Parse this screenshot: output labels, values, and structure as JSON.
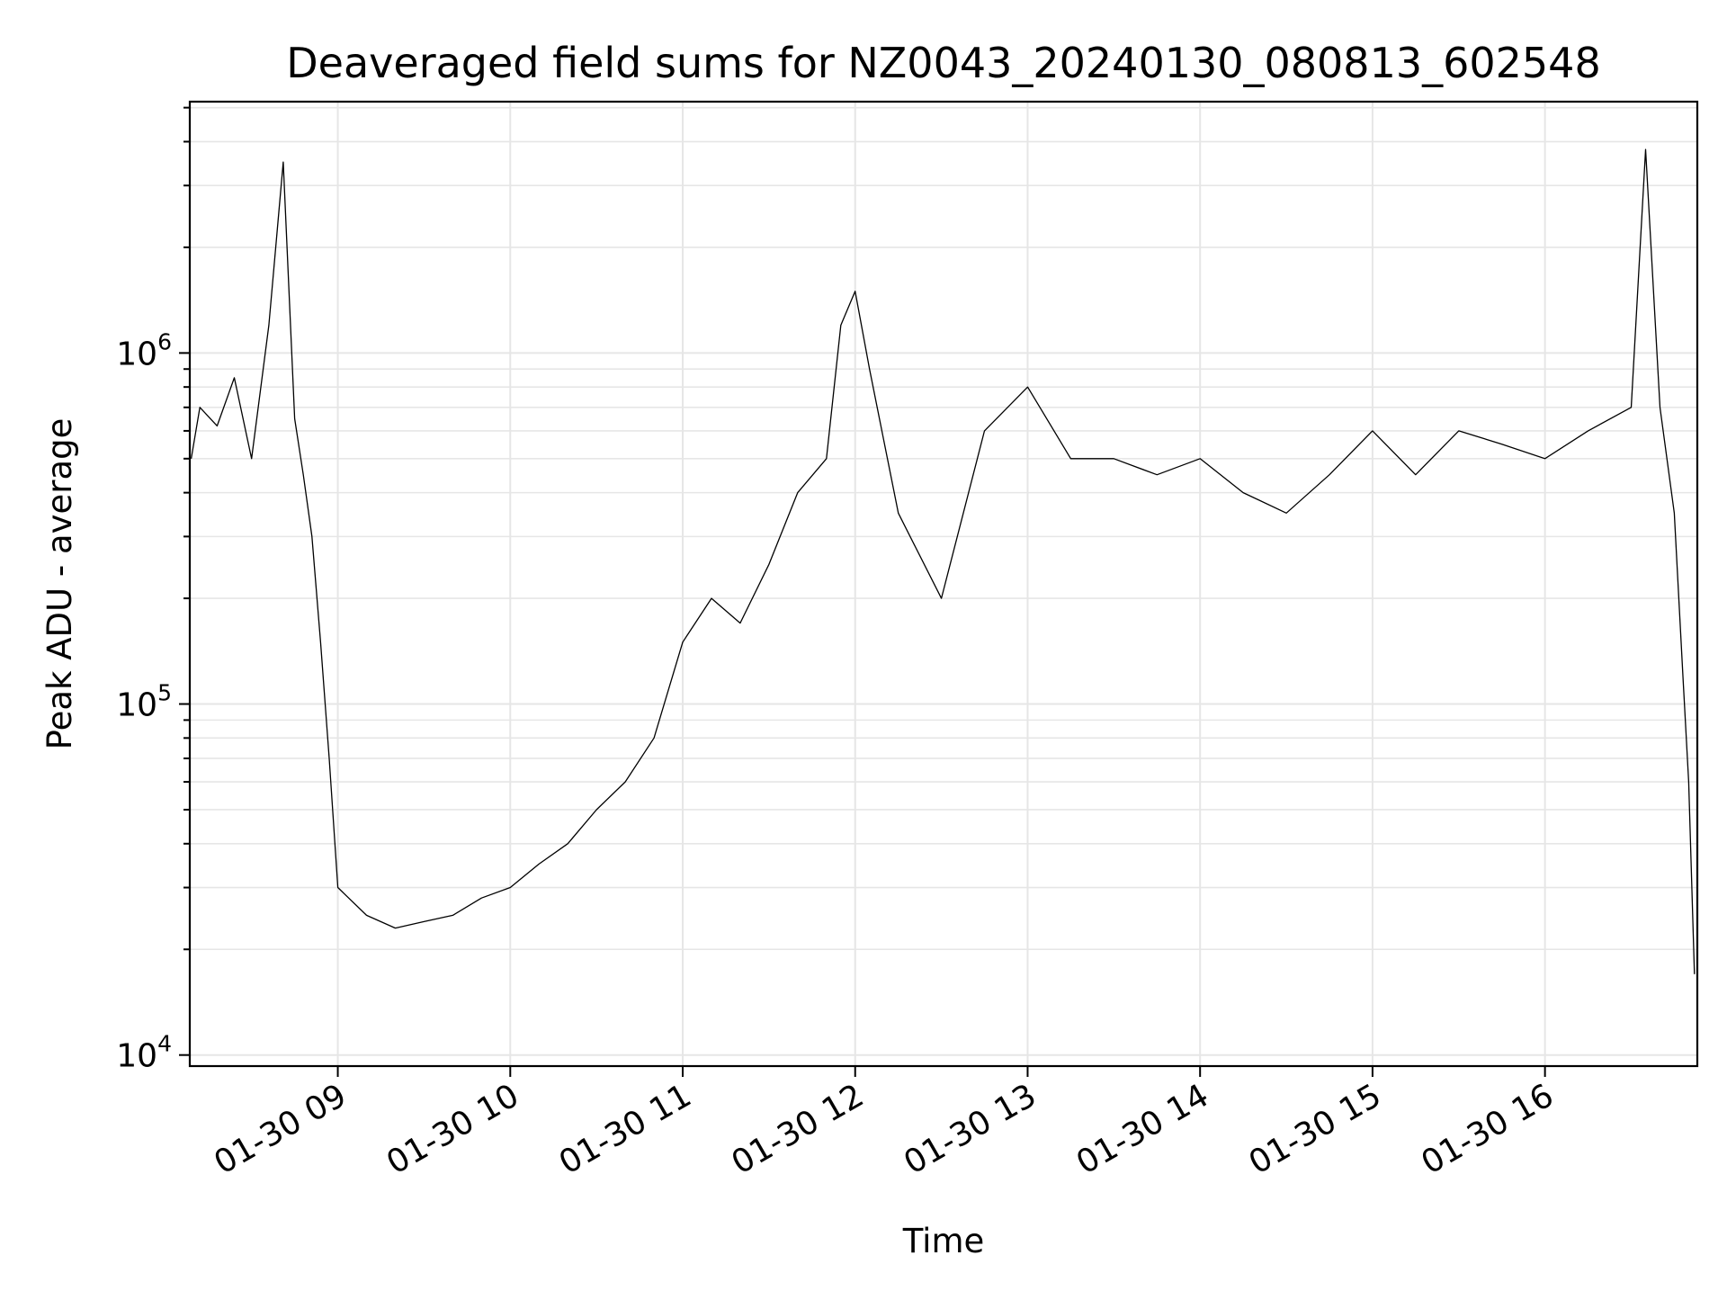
{
  "chart_data": {
    "type": "line",
    "title": "Deaveraged field sums for NZ0043_20240130_080813_602548",
    "xlabel": "Time",
    "ylabel": "Peak ADU - average",
    "yscale": "log",
    "ylim": [
      9300,
      5200000
    ],
    "xlim": [
      "2024-01-30 08:08:30",
      "2024-01-30 16:53:00"
    ],
    "grid": true,
    "legend": "none",
    "line_color": "#000000",
    "grid_color": "#e6e6e6",
    "x_ticks": [
      {
        "value": "2024-01-30 09:00",
        "label": "01-30 09"
      },
      {
        "value": "2024-01-30 10:00",
        "label": "01-30 10"
      },
      {
        "value": "2024-01-30 11:00",
        "label": "01-30 11"
      },
      {
        "value": "2024-01-30 12:00",
        "label": "01-30 12"
      },
      {
        "value": "2024-01-30 13:00",
        "label": "01-30 13"
      },
      {
        "value": "2024-01-30 14:00",
        "label": "01-30 14"
      },
      {
        "value": "2024-01-30 15:00",
        "label": "01-30 15"
      },
      {
        "value": "2024-01-30 16:00",
        "label": "01-30 16"
      }
    ],
    "y_ticks": [
      {
        "value": 10000,
        "base": "10",
        "exp": "4"
      },
      {
        "value": 100000,
        "base": "10",
        "exp": "5"
      },
      {
        "value": 1000000,
        "base": "10",
        "exp": "6"
      }
    ],
    "series": [
      {
        "points": [
          [
            "2024-01-30 08:09",
            500000
          ],
          [
            "2024-01-30 08:12",
            700000
          ],
          [
            "2024-01-30 08:18",
            620000
          ],
          [
            "2024-01-30 08:24",
            850000
          ],
          [
            "2024-01-30 08:30",
            500000
          ],
          [
            "2024-01-30 08:36",
            1200000
          ],
          [
            "2024-01-30 08:41",
            3500000
          ],
          [
            "2024-01-30 08:45",
            650000
          ],
          [
            "2024-01-30 08:48",
            450000
          ],
          [
            "2024-01-30 08:51",
            300000
          ],
          [
            "2024-01-30 08:54",
            150000
          ],
          [
            "2024-01-30 08:57",
            70000
          ],
          [
            "2024-01-30 09:00",
            30000
          ],
          [
            "2024-01-30 09:10",
            25000
          ],
          [
            "2024-01-30 09:20",
            23000
          ],
          [
            "2024-01-30 09:30",
            24000
          ],
          [
            "2024-01-30 09:40",
            25000
          ],
          [
            "2024-01-30 09:50",
            28000
          ],
          [
            "2024-01-30 10:00",
            30000
          ],
          [
            "2024-01-30 10:10",
            35000
          ],
          [
            "2024-01-30 10:20",
            40000
          ],
          [
            "2024-01-30 10:30",
            50000
          ],
          [
            "2024-01-30 10:40",
            60000
          ],
          [
            "2024-01-30 10:50",
            80000
          ],
          [
            "2024-01-30 11:00",
            150000
          ],
          [
            "2024-01-30 11:10",
            200000
          ],
          [
            "2024-01-30 11:20",
            170000
          ],
          [
            "2024-01-30 11:30",
            250000
          ],
          [
            "2024-01-30 11:40",
            400000
          ],
          [
            "2024-01-30 11:50",
            500000
          ],
          [
            "2024-01-30 11:55",
            1200000
          ],
          [
            "2024-01-30 12:00",
            1500000
          ],
          [
            "2024-01-30 12:05",
            900000
          ],
          [
            "2024-01-30 12:15",
            350000
          ],
          [
            "2024-01-30 12:30",
            200000
          ],
          [
            "2024-01-30 12:45",
            600000
          ],
          [
            "2024-01-30 13:00",
            800000
          ],
          [
            "2024-01-30 13:15",
            500000
          ],
          [
            "2024-01-30 13:30",
            500000
          ],
          [
            "2024-01-30 13:45",
            450000
          ],
          [
            "2024-01-30 14:00",
            500000
          ],
          [
            "2024-01-30 14:15",
            400000
          ],
          [
            "2024-01-30 14:30",
            350000
          ],
          [
            "2024-01-30 14:45",
            450000
          ],
          [
            "2024-01-30 15:00",
            600000
          ],
          [
            "2024-01-30 15:15",
            450000
          ],
          [
            "2024-01-30 15:30",
            600000
          ],
          [
            "2024-01-30 15:45",
            550000
          ],
          [
            "2024-01-30 16:00",
            500000
          ],
          [
            "2024-01-30 16:15",
            600000
          ],
          [
            "2024-01-30 16:30",
            700000
          ],
          [
            "2024-01-30 16:35",
            3800000
          ],
          [
            "2024-01-30 16:40",
            700000
          ],
          [
            "2024-01-30 16:45",
            350000
          ],
          [
            "2024-01-30 16:48",
            120000
          ],
          [
            "2024-01-30 16:50",
            60000
          ],
          [
            "2024-01-30 16:52",
            17000
          ]
        ]
      }
    ]
  }
}
